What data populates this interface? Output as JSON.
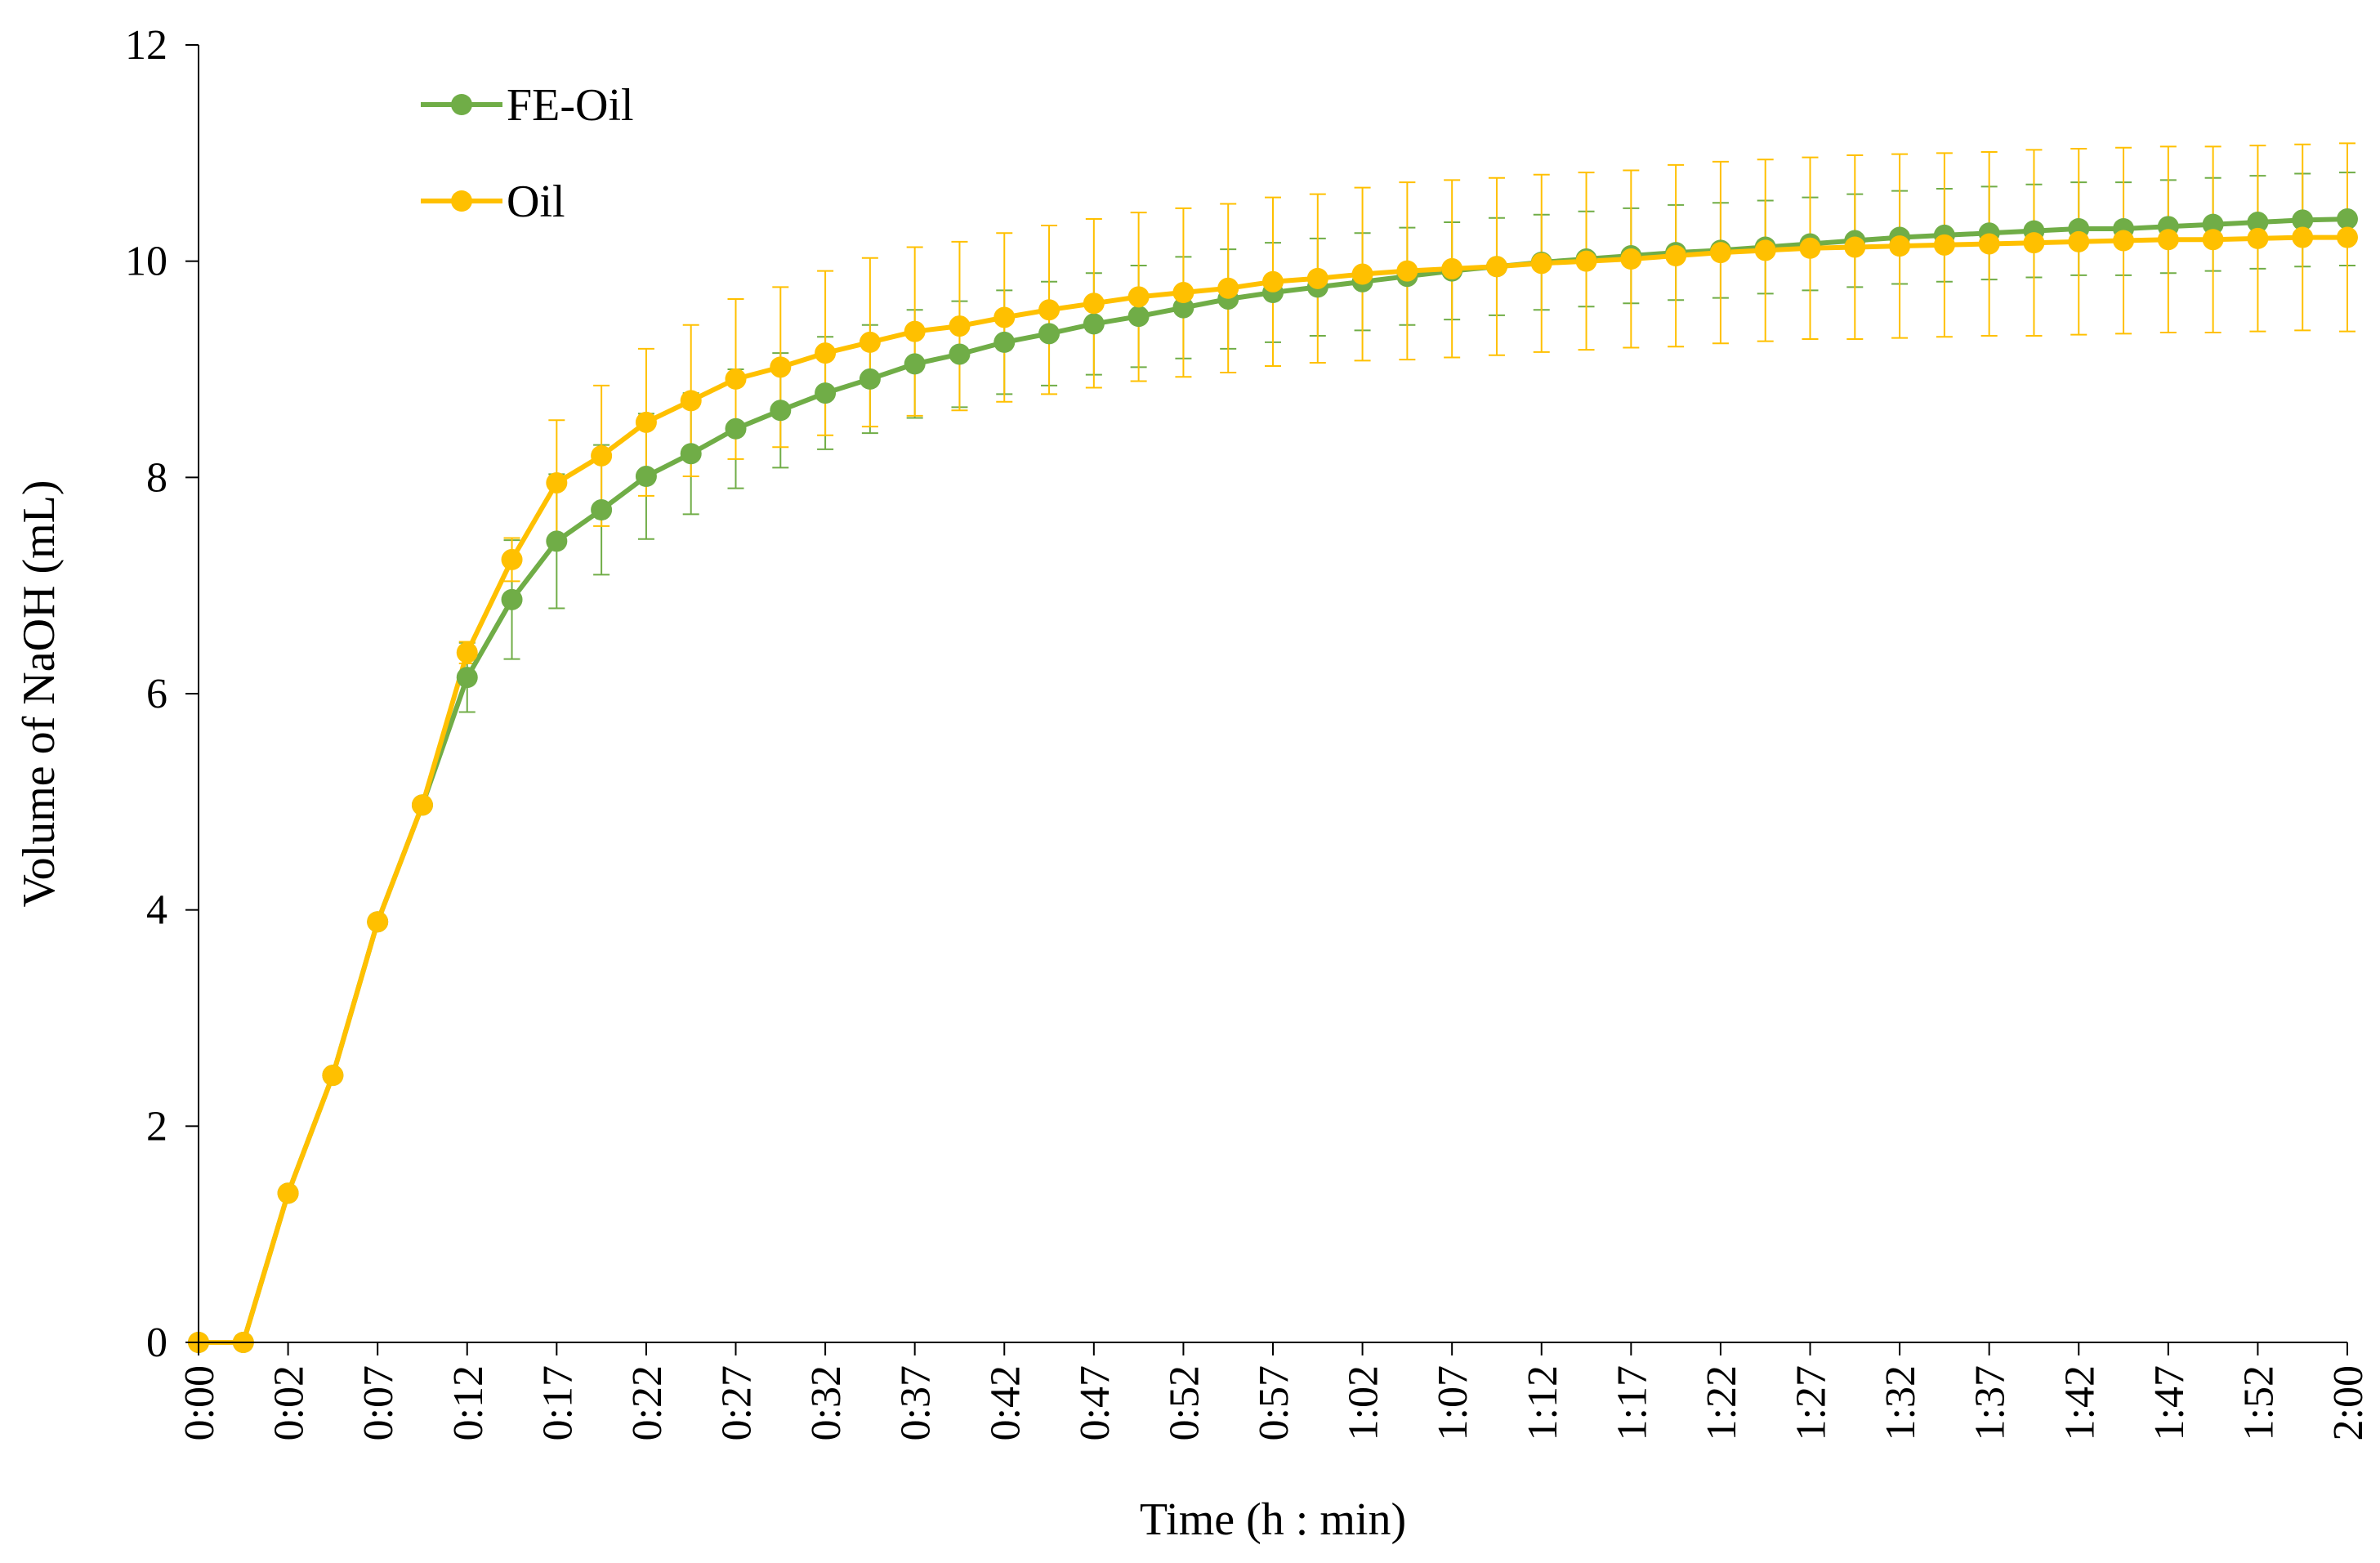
{
  "chart_data": {
    "type": "line",
    "title": "",
    "xlabel": "Time (h : min)",
    "ylabel": "Volume of NaOH (mL)",
    "ylim": [
      0,
      12
    ],
    "yticks": [
      "0",
      "2",
      "4",
      "6",
      "8",
      "10",
      "12"
    ],
    "xtick_labels": [
      "0:00",
      "0:02",
      "0:07",
      "0:12",
      "0:17",
      "0:22",
      "0:27",
      "0:32",
      "0:37",
      "0:42",
      "0:47",
      "0:52",
      "0:57",
      "1:02",
      "1:07",
      "1:12",
      "1:17",
      "1:22",
      "1:27",
      "1:32",
      "1:37",
      "1:42",
      "1:47",
      "1:52",
      "2:00"
    ],
    "grid": false,
    "legend_position": "top-left",
    "series": [
      {
        "name": "FE-Oil",
        "color": "#70ad47",
        "values": [
          0,
          0,
          1.38,
          2.47,
          3.89,
          4.97,
          6.15,
          6.87,
          7.41,
          7.7,
          8.01,
          8.22,
          8.45,
          8.62,
          8.78,
          8.91,
          9.05,
          9.14,
          9.25,
          9.33,
          9.42,
          9.49,
          9.57,
          9.65,
          9.71,
          9.76,
          9.81,
          9.86,
          9.91,
          9.95,
          9.99,
          10.02,
          10.05,
          10.08,
          10.1,
          10.13,
          10.16,
          10.19,
          10.22,
          10.24,
          10.26,
          10.28,
          10.3,
          10.3,
          10.32,
          10.34,
          10.36,
          10.38,
          10.39
        ],
        "error": [
          0,
          0,
          0,
          0,
          0,
          0,
          0.32,
          0.55,
          0.62,
          0.6,
          0.58,
          0.56,
          0.55,
          0.53,
          0.52,
          0.5,
          0.5,
          0.49,
          0.48,
          0.48,
          0.47,
          0.47,
          0.47,
          0.46,
          0.46,
          0.45,
          0.45,
          0.45,
          0.45,
          0.45,
          0.44,
          0.44,
          0.44,
          0.44,
          0.44,
          0.43,
          0.43,
          0.43,
          0.43,
          0.43,
          0.43,
          0.43,
          0.43,
          0.43,
          0.43,
          0.43,
          0.43,
          0.43,
          0.43
        ]
      },
      {
        "name": "Oil",
        "color": "#ffc000",
        "values": [
          0,
          0,
          1.38,
          2.47,
          3.89,
          4.97,
          6.38,
          7.24,
          7.95,
          8.2,
          8.51,
          8.71,
          8.91,
          9.02,
          9.15,
          9.25,
          9.35,
          9.4,
          9.48,
          9.55,
          9.61,
          9.67,
          9.71,
          9.75,
          9.81,
          9.84,
          9.88,
          9.91,
          9.93,
          9.95,
          9.98,
          10.0,
          10.02,
          10.05,
          10.08,
          10.1,
          10.12,
          10.13,
          10.14,
          10.15,
          10.16,
          10.17,
          10.18,
          10.19,
          10.2,
          10.2,
          10.21,
          10.22,
          10.22
        ]
      }
    ],
    "oil_error": [
      0,
      0,
      0,
      0,
      0,
      0,
      0.1,
      0.2,
      0.58,
      0.65,
      0.68,
      0.7,
      0.74,
      0.74,
      0.76,
      0.78,
      0.78,
      0.78,
      0.78,
      0.78,
      0.78,
      0.78,
      0.78,
      0.78,
      0.78,
      0.78,
      0.8,
      0.82,
      0.82,
      0.82,
      0.82,
      0.82,
      0.82,
      0.84,
      0.84,
      0.84,
      0.84,
      0.85,
      0.85,
      0.85,
      0.85,
      0.86,
      0.86,
      0.86,
      0.86,
      0.86,
      0.86,
      0.86,
      0.87
    ]
  }
}
